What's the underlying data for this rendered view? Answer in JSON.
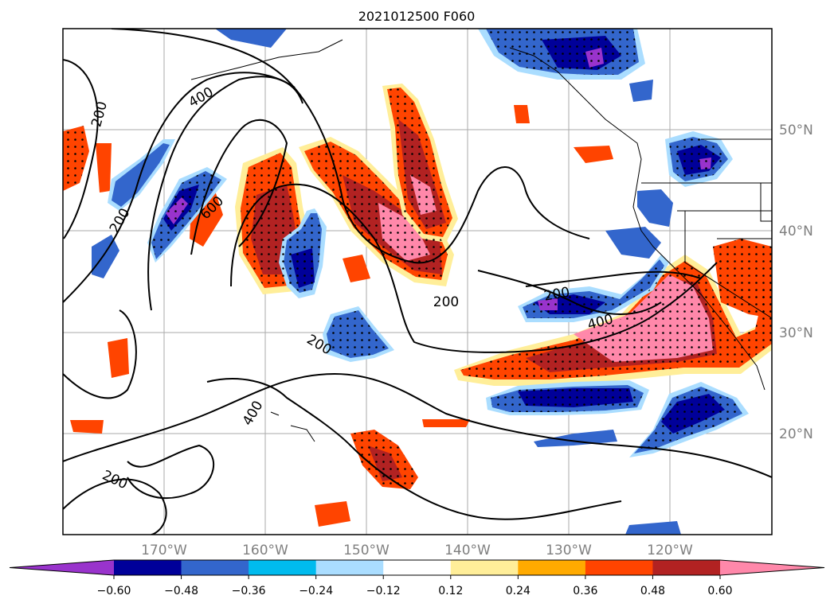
{
  "title": "2021012500 F060",
  "map": {
    "lat_labels": [
      "50°N",
      "40°N",
      "30°N",
      "20°N"
    ],
    "lon_labels": [
      "170°W",
      "160°W",
      "150°W",
      "140°W",
      "130°W",
      "120°W"
    ],
    "contour_labels": [
      "200",
      "400",
      "200",
      "600",
      "200",
      "200",
      "400",
      "200",
      "400",
      "200"
    ]
  },
  "colorbar": {
    "ticks": [
      "−0.60",
      "−0.48",
      "−0.36",
      "−0.24",
      "−0.12",
      "0.12",
      "0.24",
      "0.36",
      "0.48",
      "0.60"
    ],
    "colors": [
      "#9933cc",
      "#000099",
      "#3366cc",
      "#00bbee",
      "#aaddff",
      "#ffffff",
      "#ffee99",
      "#ffaa00",
      "#ff4400",
      "#b22222",
      "#ff88aa"
    ]
  }
}
